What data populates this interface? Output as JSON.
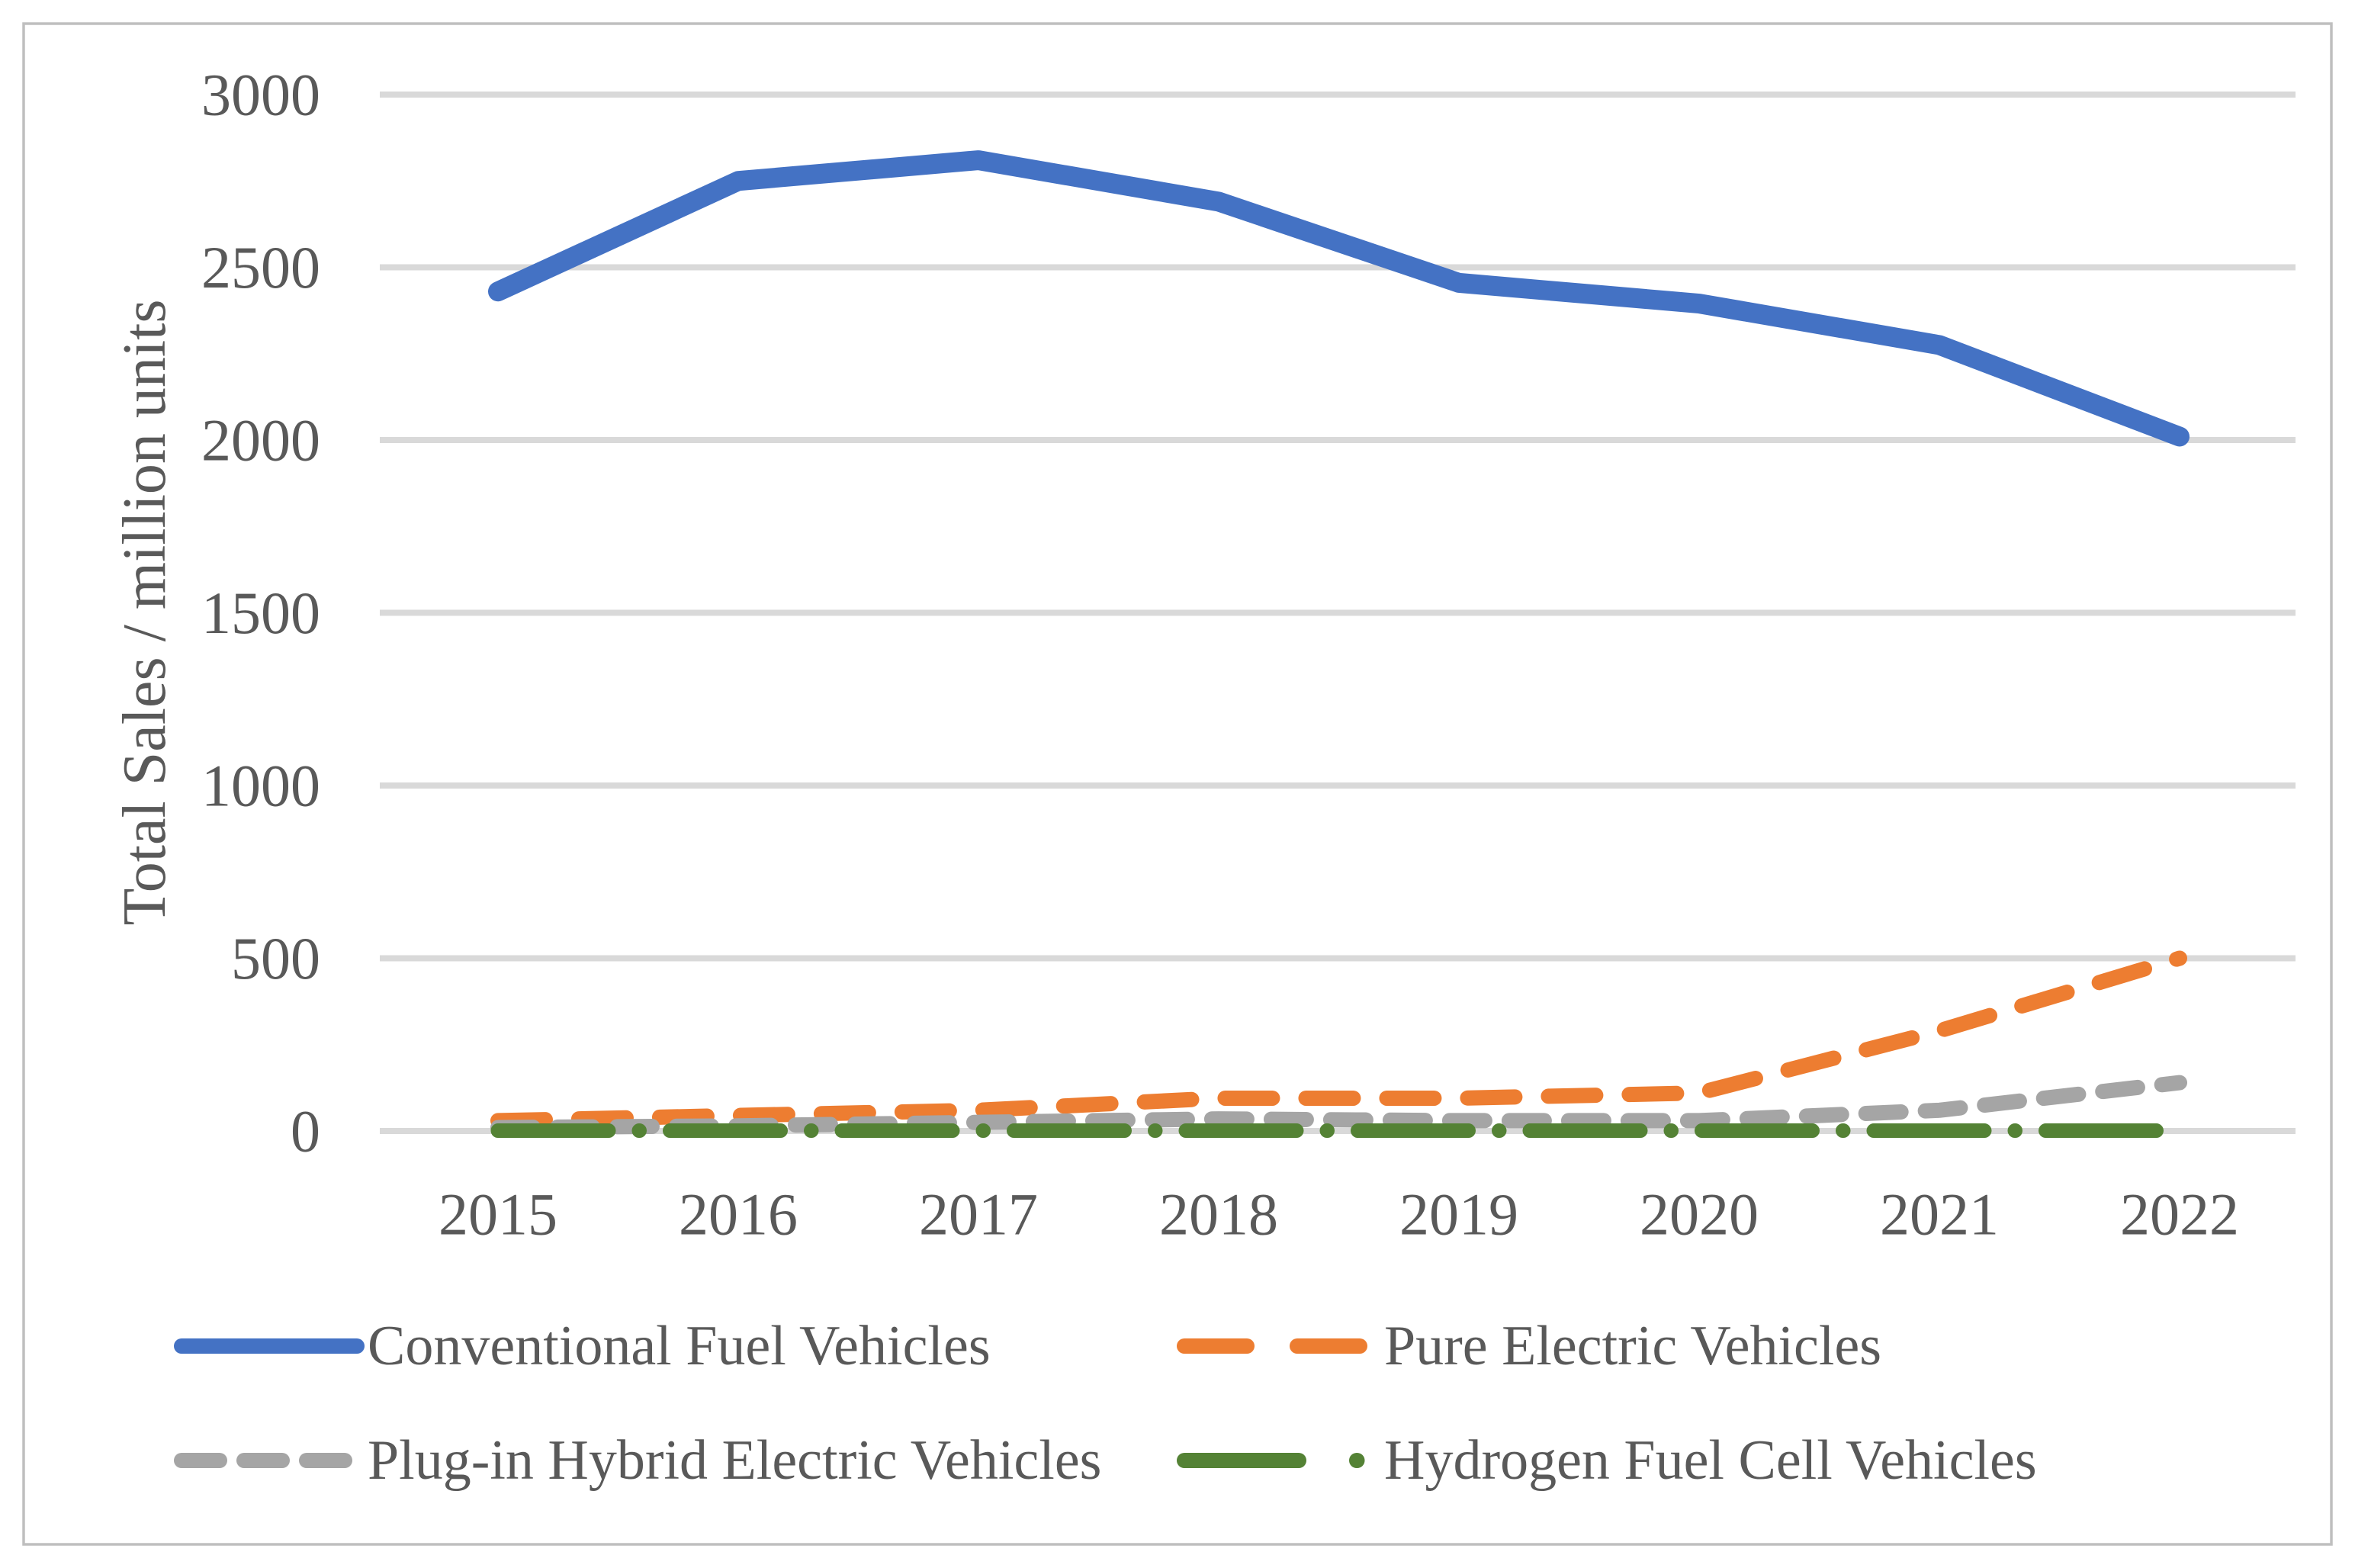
{
  "figure": {
    "ylabel": "Total Sales / million units",
    "theme": {
      "text_color": "#595959",
      "gridline_color": "#D9D9D9",
      "border_color": "#BFBFBF",
      "background": "#FFFFFF"
    }
  },
  "chart_data": {
    "type": "line",
    "title": "",
    "xlabel": "",
    "ylabel": "Total Sales / million units",
    "categories": [
      "2015",
      "2016",
      "2017",
      "2018",
      "2019",
      "2020",
      "2021",
      "2022"
    ],
    "series": [
      {
        "name": "Conventional Fuel Vehicles",
        "color": "#4472C4",
        "dash_style": "solid",
        "values": [
          2430,
          2750,
          2810,
          2690,
          2455,
          2395,
          2275,
          2010
        ]
      },
      {
        "name": "Pure Electric Vehicles",
        "color": "#ED7D31",
        "dash_style": "dash",
        "values": [
          30,
          45,
          60,
          95,
          95,
          110,
          290,
          500
        ]
      },
      {
        "name": "Plug-in Hybrid Electric Vehicles",
        "color": "#A5A5A5",
        "dash_style": "dash-short",
        "values": [
          10,
          15,
          25,
          35,
          30,
          30,
          60,
          140
        ]
      },
      {
        "name": "Hydrogen Fuel Cell Vehicles",
        "color": "#548235",
        "dash_style": "long-dash-dot",
        "values": [
          1,
          1,
          1,
          1,
          1,
          1,
          1,
          1
        ]
      }
    ],
    "ylim": [
      0,
      3000
    ],
    "yticks": [
      0,
      500,
      1000,
      1500,
      2000,
      2500,
      3000
    ],
    "grid": true,
    "legend_position": "bottom",
    "legend_rows": [
      [
        0,
        1
      ],
      [
        2,
        3
      ]
    ]
  }
}
